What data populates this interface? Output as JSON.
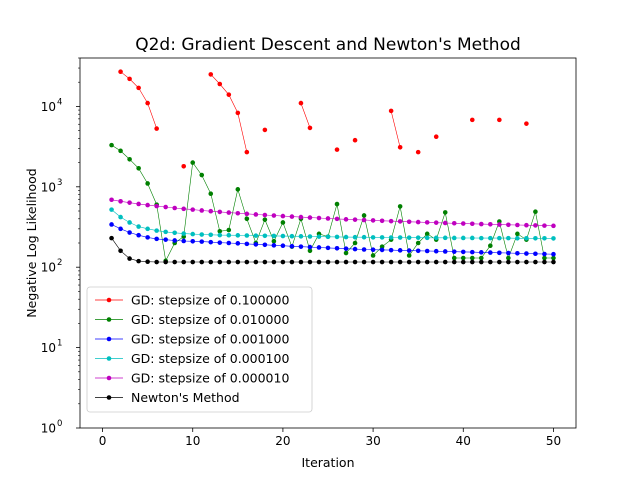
{
  "chart_data": {
    "type": "line",
    "title": "Q2d: Gradient Descent and Newton's Method",
    "xlabel": "Iteration",
    "ylabel": "Negative Log Likelihood",
    "xlim": [
      -2.5,
      52.5
    ],
    "ylim": [
      1,
      40000
    ],
    "yscale": "log",
    "grid": false,
    "legend_position": "lower-left",
    "x_ticks": [
      0,
      10,
      20,
      30,
      40,
      50
    ],
    "x_tick_labels": [
      "0",
      "10",
      "20",
      "30",
      "40",
      "50"
    ],
    "y_ticks": [
      1,
      10,
      100,
      1000,
      10000
    ],
    "y_tick_base": "10",
    "y_tick_exps": [
      "0",
      "1",
      "2",
      "3",
      "4"
    ],
    "x": [
      1,
      2,
      3,
      4,
      5,
      6,
      7,
      8,
      9,
      10,
      11,
      12,
      13,
      14,
      15,
      16,
      17,
      18,
      19,
      20,
      21,
      22,
      23,
      24,
      25,
      26,
      27,
      28,
      29,
      30,
      31,
      32,
      33,
      34,
      35,
      36,
      37,
      38,
      39,
      40,
      41,
      42,
      43,
      44,
      45,
      46,
      47,
      48,
      49,
      50
    ],
    "series": [
      {
        "name": "GD: stepsize of 0.100000",
        "color": "#ff0000",
        "values": [
          null,
          27000,
          22000,
          17000,
          11000,
          5300,
          null,
          null,
          1800,
          null,
          null,
          25000,
          19000,
          14000,
          8300,
          2700,
          null,
          5100,
          null,
          null,
          null,
          11000,
          5400,
          null,
          null,
          2900,
          null,
          3800,
          null,
          null,
          null,
          8800,
          3100,
          null,
          2700,
          null,
          4200,
          null,
          null,
          null,
          6800,
          null,
          null,
          6800,
          null,
          null,
          6100,
          null,
          null,
          null
        ]
      },
      {
        "name": "GD: stepsize of 0.010000",
        "color": "#008000",
        "values": [
          3300,
          2800,
          2200,
          1700,
          1100,
          600,
          120,
          200,
          240,
          2000,
          1400,
          820,
          280,
          290,
          930,
          400,
          200,
          390,
          210,
          360,
          180,
          400,
          160,
          260,
          240,
          610,
          150,
          200,
          440,
          140,
          180,
          220,
          570,
          140,
          200,
          260,
          220,
          480,
          130,
          130,
          130,
          130,
          185,
          370,
          130,
          260,
          220,
          490,
          130,
          130
        ]
      },
      {
        "name": "GD: stepsize of 0.001000",
        "color": "#0000ff",
        "values": [
          340,
          300,
          270,
          250,
          235,
          225,
          220,
          215,
          212,
          210,
          208,
          205,
          202,
          200,
          198,
          195,
          192,
          190,
          187,
          185,
          182,
          180,
          178,
          176,
          174,
          172,
          170,
          168,
          166,
          165,
          164,
          163,
          162,
          161,
          160,
          159,
          158,
          157,
          156,
          155,
          154,
          153,
          152,
          151,
          150,
          149,
          148,
          147,
          146,
          145
        ]
      },
      {
        "name": "GD: stepsize of 0.000100",
        "color": "#00bfbf",
        "values": [
          520,
          420,
          360,
          320,
          300,
          285,
          275,
          268,
          262,
          258,
          255,
          253,
          251,
          250,
          249,
          248,
          247,
          246,
          245,
          244,
          243,
          242,
          241,
          240,
          239,
          238,
          237,
          236,
          236,
          235,
          235,
          234,
          234,
          233,
          233,
          232,
          232,
          232,
          231,
          231,
          231,
          230,
          230,
          230,
          230,
          229,
          229,
          229,
          229,
          228
        ]
      },
      {
        "name": "GD: stepsize of 0.000010",
        "color": "#bf00bf",
        "values": [
          690,
          660,
          635,
          612,
          592,
          575,
          560,
          545,
          532,
          520,
          508,
          497,
          487,
          478,
          469,
          461,
          453,
          446,
          439,
          432,
          426,
          420,
          414,
          409,
          404,
          399,
          394,
          390,
          386,
          382,
          378,
          374,
          371,
          367,
          364,
          361,
          358,
          355,
          352,
          349,
          347,
          344,
          342,
          339,
          337,
          335,
          333,
          331,
          329,
          327
        ]
      },
      {
        "name": "Newton's Method",
        "color": "#000000",
        "values": [
          230,
          160,
          128,
          119,
          117,
          116,
          116,
          116,
          116,
          116,
          116,
          116,
          116,
          116,
          116,
          116,
          116,
          116,
          116,
          116,
          116,
          116,
          116,
          116,
          116,
          116,
          116,
          116,
          116,
          116,
          116,
          116,
          116,
          116,
          116,
          116,
          116,
          116,
          116,
          116,
          116,
          116,
          116,
          116,
          116,
          116,
          116,
          116,
          116,
          116
        ]
      }
    ]
  }
}
